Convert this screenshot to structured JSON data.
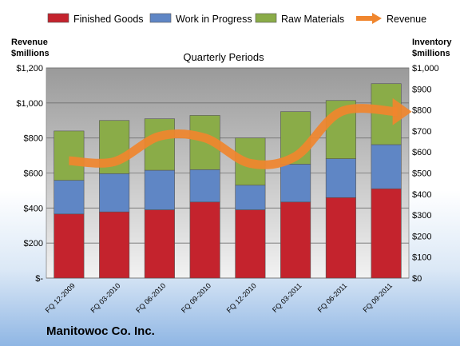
{
  "chart_data": {
    "type": "bar",
    "stacked": true,
    "title": "Quarterly Periods",
    "company": "Manitowoc Co. Inc.",
    "categories": [
      "FQ 12-2009",
      "FQ 03-2010",
      "FQ 06-2010",
      "FQ 09-2010",
      "FQ 12-2010",
      "FQ 03-2011",
      "FQ 06-2011",
      "FQ 09-2011"
    ],
    "left_axis": {
      "title_line1": "Revenue",
      "title_line2": "$millions",
      "ylim": [
        0,
        1200
      ],
      "ticks": [
        0,
        200,
        400,
        600,
        800,
        1000,
        1200
      ],
      "tick_labels": [
        "$-",
        "$200",
        "$400",
        "$600",
        "$800",
        "$1,000",
        "$1,200"
      ]
    },
    "right_axis": {
      "title_line1": "Inventory",
      "title_line2": "$millions",
      "ylim": [
        0,
        1000
      ],
      "ticks": [
        0,
        100,
        200,
        300,
        400,
        500,
        600,
        700,
        800,
        900,
        1000
      ],
      "tick_labels": [
        "$0",
        "$100",
        "$200",
        "$300",
        "$400",
        "$500",
        "$600",
        "$700",
        "$800",
        "$900",
        "$1,000"
      ]
    },
    "series": [
      {
        "name": "Finished Goods",
        "axis": "right",
        "color": "#c4232d",
        "values": [
          305,
          315,
          325,
          362,
          325,
          362,
          383,
          425
        ]
      },
      {
        "name": "Work in Progress",
        "axis": "right",
        "color": "#5f86c5",
        "values": [
          160,
          182,
          188,
          154,
          117,
          180,
          185,
          210
        ]
      },
      {
        "name": "Raw Materials",
        "axis": "right",
        "color": "#8aac48",
        "values": [
          235,
          253,
          245,
          258,
          225,
          250,
          277,
          290
        ]
      },
      {
        "name": "Revenue",
        "axis": "left",
        "type": "line",
        "color": "#f0862e",
        "values": [
          670,
          665,
          810,
          800,
          655,
          695,
          950,
          950
        ]
      }
    ],
    "grid": true,
    "legend": "top"
  }
}
